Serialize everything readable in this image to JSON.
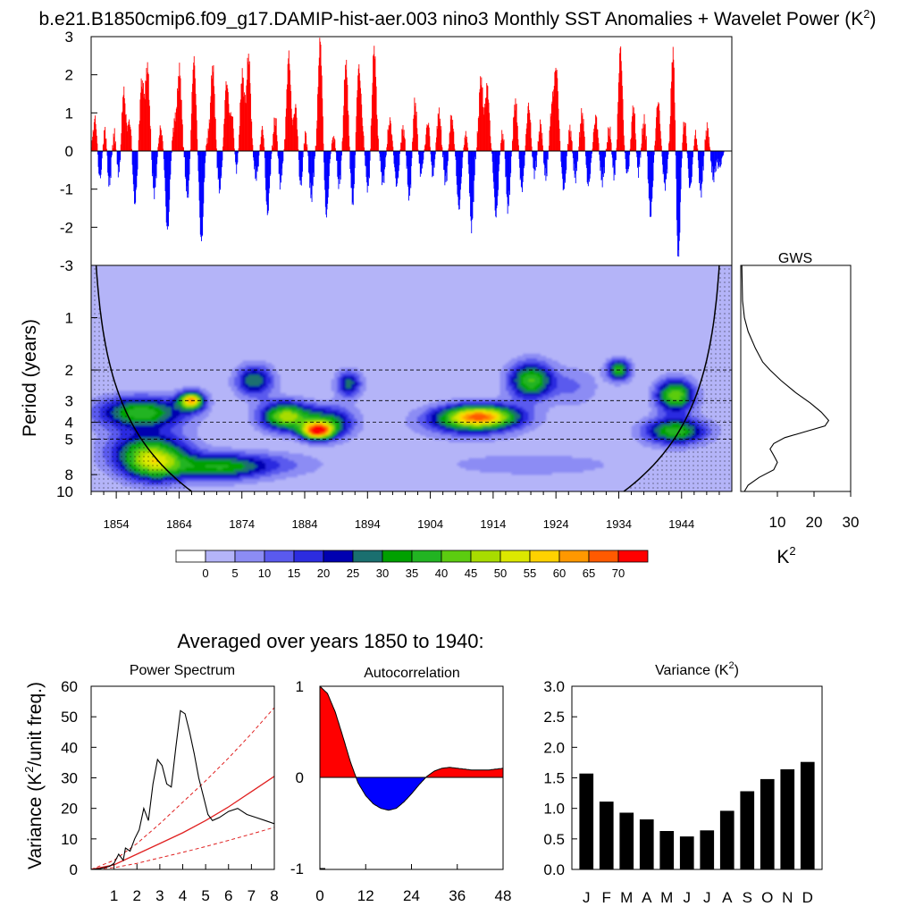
{
  "main_title": "b.e21.B1850cmip6.f09_g17.DAMIP-hist-aer.003 nino3 Monthly SST Anomalies + Wavelet Power (K",
  "main_title_sup": "2",
  "main_title_end": ")",
  "averaged_label": "Averaged over years 1850 to 1940:",
  "colors": {
    "positive": "#ff0000",
    "negative": "#0000ff",
    "bar": "#000000",
    "line": "#000000",
    "red_line": "#e02020"
  },
  "chart_data": [
    {
      "id": "sst_anomalies",
      "type": "bar",
      "description_free": true,
      "x_range": [
        1850,
        1952
      ],
      "ylim": [
        -3,
        3
      ],
      "yticks": [
        "3",
        "2",
        "1",
        "0",
        "-1",
        "-2",
        "-3"
      ],
      "peaks": [
        {
          "year": 1850.6,
          "value": 0.9
        },
        {
          "year": 1851.3,
          "value": -0.8
        },
        {
          "year": 1852.2,
          "value": 0.7
        },
        {
          "year": 1852.8,
          "value": -1.0
        },
        {
          "year": 1853.6,
          "value": 0.5
        },
        {
          "year": 1854.4,
          "value": -0.7
        },
        {
          "year": 1855.1,
          "value": 1.6
        },
        {
          "year": 1856.1,
          "value": 0.8
        },
        {
          "year": 1856.9,
          "value": -1.4
        },
        {
          "year": 1858.0,
          "value": 1.8
        },
        {
          "year": 1858.9,
          "value": 2.2
        },
        {
          "year": 1860.0,
          "value": -1.1
        },
        {
          "year": 1861.0,
          "value": 0.6
        },
        {
          "year": 1862.1,
          "value": -2.1
        },
        {
          "year": 1863.2,
          "value": 0.7
        },
        {
          "year": 1864.0,
          "value": 2.1
        },
        {
          "year": 1865.3,
          "value": -1.2
        },
        {
          "year": 1866.3,
          "value": 2.4
        },
        {
          "year": 1867.5,
          "value": -2.4
        },
        {
          "year": 1868.5,
          "value": 0.3
        },
        {
          "year": 1869.3,
          "value": 2.2
        },
        {
          "year": 1870.4,
          "value": -1.0
        },
        {
          "year": 1871.5,
          "value": 1.8
        },
        {
          "year": 1872.4,
          "value": 1.0
        },
        {
          "year": 1873.0,
          "value": -0.6
        },
        {
          "year": 1874.0,
          "value": 2.0
        },
        {
          "year": 1875.0,
          "value": 2.5
        },
        {
          "year": 1876.2,
          "value": -0.7
        },
        {
          "year": 1877.3,
          "value": 0.7
        },
        {
          "year": 1878.0,
          "value": -1.7
        },
        {
          "year": 1879.3,
          "value": 0.9
        },
        {
          "year": 1880.0,
          "value": -0.9
        },
        {
          "year": 1881.4,
          "value": 2.5
        },
        {
          "year": 1882.5,
          "value": 1.2
        },
        {
          "year": 1883.3,
          "value": -1.0
        },
        {
          "year": 1884.0,
          "value": 0.5
        },
        {
          "year": 1885.0,
          "value": -1.2
        },
        {
          "year": 1886.4,
          "value": 2.9
        },
        {
          "year": 1887.4,
          "value": -1.7
        },
        {
          "year": 1888.6,
          "value": 0.4
        },
        {
          "year": 1889.4,
          "value": -0.9
        },
        {
          "year": 1890.5,
          "value": 2.3
        },
        {
          "year": 1891.6,
          "value": -1.4
        },
        {
          "year": 1892.5,
          "value": 2.0
        },
        {
          "year": 1893.0,
          "value": 0.6
        },
        {
          "year": 1894.0,
          "value": -1.0
        },
        {
          "year": 1895.0,
          "value": 2.7
        },
        {
          "year": 1896.4,
          "value": -0.8
        },
        {
          "year": 1897.5,
          "value": 0.8
        },
        {
          "year": 1898.6,
          "value": -0.9
        },
        {
          "year": 1899.6,
          "value": 0.6
        },
        {
          "year": 1900.6,
          "value": -1.2
        },
        {
          "year": 1901.5,
          "value": 1.3
        },
        {
          "year": 1902.4,
          "value": -0.6
        },
        {
          "year": 1903.6,
          "value": 0.8
        },
        {
          "year": 1904.3,
          "value": -0.7
        },
        {
          "year": 1905.3,
          "value": 1.0
        },
        {
          "year": 1906.4,
          "value": -0.8
        },
        {
          "year": 1907.3,
          "value": 0.9
        },
        {
          "year": 1908.5,
          "value": -1.5
        },
        {
          "year": 1909.7,
          "value": 0.5
        },
        {
          "year": 1910.5,
          "value": -2.0
        },
        {
          "year": 1912.0,
          "value": 1.9
        },
        {
          "year": 1913.0,
          "value": 1.7
        },
        {
          "year": 1914.4,
          "value": -1.7
        },
        {
          "year": 1915.5,
          "value": 0.5
        },
        {
          "year": 1916.3,
          "value": -1.5
        },
        {
          "year": 1917.5,
          "value": 1.3
        },
        {
          "year": 1918.5,
          "value": -1.0
        },
        {
          "year": 1919.6,
          "value": 1.2
        },
        {
          "year": 1920.5,
          "value": -0.6
        },
        {
          "year": 1921.5,
          "value": 0.7
        },
        {
          "year": 1922.3,
          "value": -0.7
        },
        {
          "year": 1923.3,
          "value": 1.1
        },
        {
          "year": 1924.0,
          "value": 2.1
        },
        {
          "year": 1925.2,
          "value": -1.0
        },
        {
          "year": 1926.2,
          "value": 0.6
        },
        {
          "year": 1927.0,
          "value": -0.7
        },
        {
          "year": 1928.1,
          "value": 1.0
        },
        {
          "year": 1929.1,
          "value": -0.9
        },
        {
          "year": 1930.3,
          "value": 0.9
        },
        {
          "year": 1931.3,
          "value": -0.8
        },
        {
          "year": 1932.5,
          "value": 0.6
        },
        {
          "year": 1933.2,
          "value": -0.7
        },
        {
          "year": 1934.2,
          "value": 2.7
        },
        {
          "year": 1935.3,
          "value": -0.6
        },
        {
          "year": 1936.3,
          "value": 1.2
        },
        {
          "year": 1937.0,
          "value": -0.6
        },
        {
          "year": 1938.0,
          "value": 0.8
        },
        {
          "year": 1939.0,
          "value": -1.7
        },
        {
          "year": 1940.2,
          "value": 1.3
        },
        {
          "year": 1941.3,
          "value": -0.9
        },
        {
          "year": 1942.6,
          "value": 2.7
        },
        {
          "year": 1943.4,
          "value": -2.9
        },
        {
          "year": 1944.4,
          "value": 0.8
        },
        {
          "year": 1945.3,
          "value": -1.0
        },
        {
          "year": 1946.2,
          "value": 0.5
        },
        {
          "year": 1947.0,
          "value": -1.1
        },
        {
          "year": 1948.0,
          "value": 0.6
        },
        {
          "year": 1949.0,
          "value": -0.7
        },
        {
          "year": 1950.0,
          "value": -0.4
        }
      ]
    },
    {
      "id": "wavelet_power",
      "type": "heatmap",
      "ylabel": "Period (years)",
      "x_range": [
        1850,
        1952
      ],
      "period_range": [
        0.5,
        10
      ],
      "log_scale_y": true,
      "xticks": [
        "1854",
        "1864",
        "1874",
        "1884",
        "1894",
        "1904",
        "1914",
        "1924",
        "1934",
        "1944"
      ],
      "ytick_values": [
        1,
        2,
        3,
        4,
        5,
        8,
        10
      ],
      "yticks": [
        "1",
        "2",
        "3",
        "4",
        "5",
        "8",
        "10"
      ],
      "dashed_periods": [
        2,
        3,
        4,
        5
      ],
      "blobs": [
        {
          "year": 1866,
          "period": 3.0,
          "power": 58,
          "wy": 2.0,
          "wp": 0.17
        },
        {
          "year": 1858,
          "period": 3.5,
          "power": 38,
          "wy": 7.0,
          "wp": 0.3
        },
        {
          "year": 1859,
          "period": 5.8,
          "power": 28,
          "wy": 6.5,
          "wp": 0.4
        },
        {
          "year": 1860,
          "period": 7.0,
          "power": 32,
          "wy": 5.0,
          "wp": 0.35
        },
        {
          "year": 1870,
          "period": 7.3,
          "power": 25,
          "wy": 7.0,
          "wp": 0.25
        },
        {
          "year": 1876,
          "period": 2.3,
          "power": 30,
          "wy": 3.0,
          "wp": 0.3
        },
        {
          "year": 1881,
          "period": 3.7,
          "power": 48,
          "wy": 4.0,
          "wp": 0.27
        },
        {
          "year": 1886,
          "period": 4.5,
          "power": 62,
          "wy": 2.5,
          "wp": 0.16
        },
        {
          "year": 1888,
          "period": 4.0,
          "power": 30,
          "wy": 4.0,
          "wp": 0.3
        },
        {
          "year": 1891,
          "period": 2.4,
          "power": 28,
          "wy": 2.0,
          "wp": 0.25
        },
        {
          "year": 1876,
          "period": 7.0,
          "power": 14,
          "wy": 10.0,
          "wp": 0.25
        },
        {
          "year": 1912,
          "period": 3.7,
          "power": 52,
          "wy": 6.0,
          "wp": 0.22
        },
        {
          "year": 1920,
          "period": 2.3,
          "power": 40,
          "wy": 3.5,
          "wp": 0.35
        },
        {
          "year": 1910,
          "period": 4.0,
          "power": 20,
          "wy": 8.0,
          "wp": 0.3
        },
        {
          "year": 1934,
          "period": 2.0,
          "power": 38,
          "wy": 1.8,
          "wp": 0.2
        },
        {
          "year": 1943,
          "period": 2.8,
          "power": 45,
          "wy": 3.0,
          "wp": 0.3
        },
        {
          "year": 1943,
          "period": 4.5,
          "power": 38,
          "wy": 5.0,
          "wp": 0.25
        },
        {
          "year": 1927,
          "period": 2.5,
          "power": 10,
          "wy": 4.0,
          "wp": 0.4
        },
        {
          "year": 1920,
          "period": 7.0,
          "power": 7,
          "wy": 20.0,
          "wp": 0.3
        }
      ]
    },
    {
      "id": "gws",
      "type": "line",
      "title": "GWS",
      "xlabel": "K",
      "xlabel_sup": "2",
      "xlim": [
        0,
        30
      ],
      "xticks": [
        "10",
        "20",
        "30"
      ],
      "x": [
        0.3,
        0.5,
        1,
        2,
        4,
        6,
        8,
        11,
        15,
        19,
        22,
        24,
        23,
        18,
        12,
        9,
        8,
        9,
        10,
        9,
        5,
        2,
        1
      ],
      "period": [
        0.5,
        0.8,
        1.0,
        1.2,
        1.5,
        1.8,
        2.0,
        2.3,
        2.7,
        3.1,
        3.5,
        3.9,
        4.2,
        4.5,
        4.9,
        5.3,
        5.7,
        6.2,
        6.8,
        7.5,
        8.3,
        9.2,
        10
      ]
    },
    {
      "id": "colorbar",
      "type": "table",
      "labels": [
        "0",
        "5",
        "10",
        "15",
        "20",
        "25",
        "30",
        "35",
        "40",
        "45",
        "50",
        "55",
        "60",
        "65",
        "70"
      ],
      "colors": [
        "#ffffff",
        "#b4b4f8",
        "#8c8cf4",
        "#5a5aee",
        "#2c2ce0",
        "#0000b0",
        "#1a6f6f",
        "#00a000",
        "#22b422",
        "#5ccc10",
        "#a8dc00",
        "#dce800",
        "#ffd200",
        "#ff9800",
        "#ff5a00",
        "#ff0000"
      ]
    },
    {
      "id": "power_spectrum",
      "type": "line",
      "title": "Power Spectrum",
      "ylabel": "Variance (K",
      "ylabel_sup": "2",
      "ylabel_end": "/unit freq.)",
      "xlim": [
        0,
        8
      ],
      "ylim": [
        0,
        60
      ],
      "xticks": [
        "1",
        "2",
        "3",
        "4",
        "5",
        "6",
        "7",
        "8"
      ],
      "yticks": [
        "0",
        "10",
        "20",
        "30",
        "40",
        "50",
        "60"
      ],
      "spectrum": {
        "x": [
          0,
          0.4,
          0.8,
          1.0,
          1.2,
          1.4,
          1.5,
          1.7,
          1.9,
          2.1,
          2.3,
          2.5,
          2.7,
          2.9,
          3.1,
          3.3,
          3.5,
          3.7,
          3.9,
          4.1,
          4.3,
          4.5,
          4.7,
          4.9,
          5.1,
          5.3,
          5.6,
          6.0,
          6.4,
          6.8,
          7.2,
          7.6,
          8.0
        ],
        "y": [
          0,
          0.3,
          1.0,
          2.0,
          5.0,
          3.0,
          7.0,
          6.0,
          10.0,
          13.0,
          20.0,
          16.0,
          28.0,
          36.0,
          34.0,
          28.0,
          27.0,
          40.0,
          52.0,
          51.0,
          45.0,
          38.0,
          30.0,
          24.0,
          18.0,
          16.0,
          17.0,
          19.0,
          20.0,
          18.0,
          17.0,
          16.0,
          15.0
        ]
      },
      "red_noise": {
        "x": [
          0,
          1,
          2,
          3,
          4,
          5,
          6,
          7,
          8
        ],
        "y": [
          0,
          1.5,
          5.0,
          8.5,
          12.0,
          16.0,
          20.5,
          25.5,
          30.5
        ]
      },
      "upper_ci": {
        "x": [
          0,
          1,
          2,
          3,
          4,
          5,
          6,
          7,
          8
        ],
        "y": [
          0,
          3.0,
          8.5,
          15.0,
          22.0,
          29.0,
          36.5,
          44.5,
          53.0
        ]
      },
      "lower_ci": {
        "x": [
          0,
          1,
          2,
          3,
          4,
          5,
          6,
          7,
          8
        ],
        "y": [
          0,
          0.6,
          2.0,
          3.8,
          5.6,
          7.5,
          9.5,
          11.6,
          13.8
        ]
      }
    },
    {
      "id": "autocorrelation",
      "type": "area",
      "title": "Autocorrelation",
      "xlim": [
        0,
        48
      ],
      "ylim": [
        -1,
        1
      ],
      "xticks": [
        "0",
        "12",
        "24",
        "36",
        "48"
      ],
      "yticks": [
        "1",
        "0",
        "-1"
      ],
      "lag": [
        0,
        2,
        4,
        6,
        8,
        10,
        12,
        14,
        16,
        18,
        20,
        22,
        24,
        26,
        28,
        30,
        32,
        34,
        36,
        38,
        40,
        42,
        44,
        46,
        48
      ],
      "r": [
        1.0,
        0.92,
        0.72,
        0.45,
        0.17,
        -0.06,
        -0.2,
        -0.29,
        -0.34,
        -0.36,
        -0.34,
        -0.27,
        -0.18,
        -0.08,
        0.01,
        0.07,
        0.1,
        0.11,
        0.1,
        0.09,
        0.08,
        0.08,
        0.08,
        0.09,
        0.1
      ]
    },
    {
      "id": "monthly_variance",
      "type": "bar",
      "title": "Variance (K",
      "title_sup": "2",
      "title_end": ")",
      "ylim": [
        0,
        3
      ],
      "yticks": [
        "3.0",
        "2.5",
        "2.0",
        "1.5",
        "1.0",
        "0.5",
        "0.0"
      ],
      "categories": [
        "J",
        "F",
        "M",
        "A",
        "M",
        "J",
        "J",
        "A",
        "S",
        "O",
        "N",
        "D"
      ],
      "values": [
        1.57,
        1.11,
        0.93,
        0.82,
        0.63,
        0.54,
        0.64,
        0.96,
        1.28,
        1.48,
        1.64,
        1.76
      ]
    }
  ]
}
